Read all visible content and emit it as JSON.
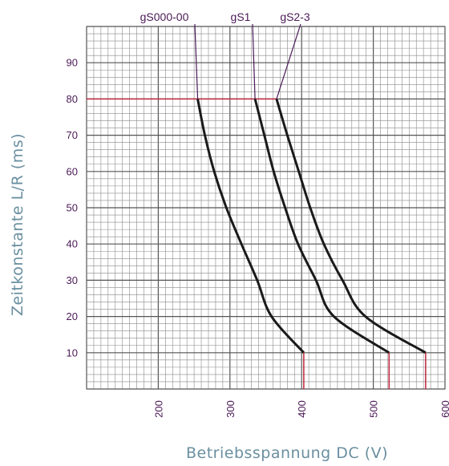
{
  "chart_data": {
    "type": "line",
    "xlabel": "Betriebsspannung DC  (V)",
    "ylabel": "Zeitkonstante L/R (ms)",
    "xlim": [
      100,
      600
    ],
    "ylim": [
      0,
      100
    ],
    "x_ticks": [
      "200",
      "300",
      "400",
      "500",
      "600"
    ],
    "y_ticks": [
      "10",
      "20",
      "30",
      "40",
      "50",
      "60",
      "70",
      "80",
      "90"
    ],
    "grid": true,
    "reference_line": {
      "y": 80,
      "x_end": 365,
      "color": "#c0283c"
    },
    "series": [
      {
        "name": "gS000-00",
        "color": "#1a1a1a",
        "points": [
          [
            255,
            80
          ],
          [
            265,
            70
          ],
          [
            278,
            60
          ],
          [
            295,
            50
          ],
          [
            316,
            40
          ],
          [
            338,
            30
          ],
          [
            358,
            20
          ],
          [
            403,
            10
          ]
        ],
        "cutoff_x": 403
      },
      {
        "name": "gS1",
        "color": "#1a1a1a",
        "points": [
          [
            335,
            80
          ],
          [
            348,
            70
          ],
          [
            361,
            60
          ],
          [
            377,
            50
          ],
          [
            395,
            40
          ],
          [
            420,
            30
          ],
          [
            445,
            20
          ],
          [
            522,
            10
          ]
        ],
        "cutoff_x": 522
      },
      {
        "name": "gS2-3",
        "color": "#1a1a1a",
        "points": [
          [
            365,
            80
          ],
          [
            380,
            70
          ],
          [
            396,
            60
          ],
          [
            412,
            50
          ],
          [
            431,
            40
          ],
          [
            457,
            30
          ],
          [
            489,
            20
          ],
          [
            573,
            10
          ]
        ],
        "cutoff_x": 573
      }
    ],
    "label_color": "#4a1a56",
    "accent_color": "#c0283c"
  }
}
